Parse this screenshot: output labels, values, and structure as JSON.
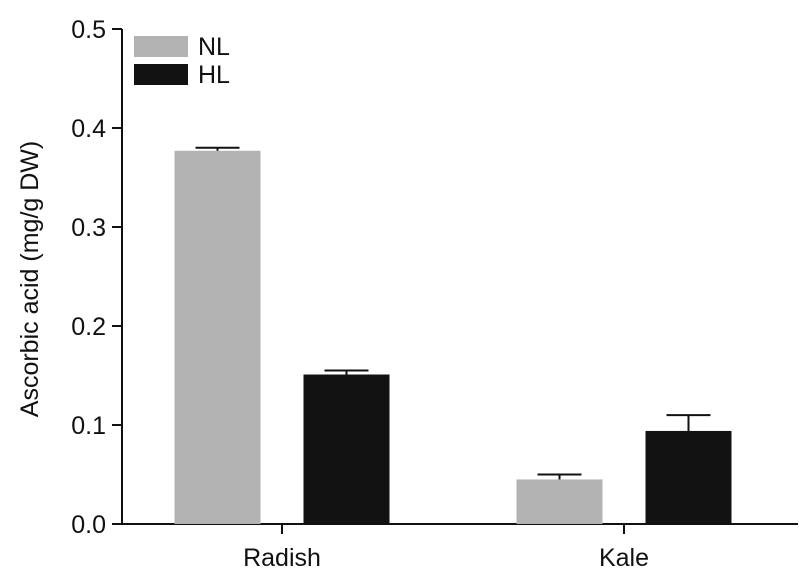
{
  "chart_data": {
    "type": "bar",
    "title": "",
    "xlabel": "",
    "ylabel": "Ascorbic acid (mg/g DW)",
    "categories": [
      "Radish",
      "Kale"
    ],
    "series": [
      {
        "name": "NL",
        "color": "#b3b3b3",
        "values": [
          0.377,
          0.045
        ],
        "errors": [
          0.003,
          0.005
        ]
      },
      {
        "name": "HL",
        "color": "#121212",
        "values": [
          0.151,
          0.094
        ],
        "errors": [
          0.004,
          0.016
        ]
      }
    ],
    "ylim": [
      0,
      0.5
    ],
    "yticks": [
      "0.0",
      "0.1",
      "0.2",
      "0.3",
      "0.4",
      "0.5"
    ],
    "grid": false,
    "legend_position": "top-left"
  }
}
